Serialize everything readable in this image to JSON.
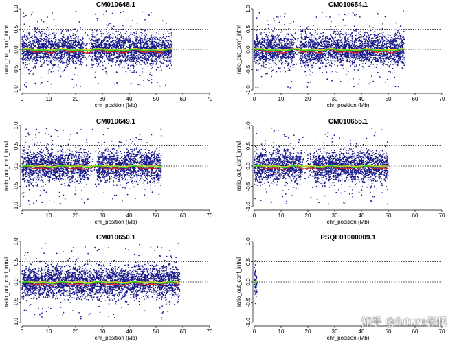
{
  "figure": {
    "watermark": "知乎 @future张帆",
    "colors": {
      "points": "#1a1a8a",
      "ref_line": "#000000",
      "smooth_green": "#22cc22",
      "smooth_yellow": "#dddd22",
      "smooth_red": "#dd2222"
    }
  },
  "chart_data": [
    {
      "type": "scatter",
      "title": "CM010648.1",
      "xlabel": "chr_position (Mb)",
      "ylabel": "ratio_out_conf_intrvl",
      "xlim": [
        0,
        70
      ],
      "ylim": [
        -1.0,
        1.0
      ],
      "xticks": [
        "0",
        "10",
        "20",
        "30",
        "40",
        "50",
        "60",
        "70"
      ],
      "yticks": [
        "-1.0",
        "-0.5",
        "0.0",
        "0.5",
        "1.0"
      ],
      "ref_lines_y": [
        0.5,
        0.0
      ],
      "data_extent_mb": [
        0,
        56
      ],
      "gaps_mb": [
        [
          23,
          26
        ]
      ]
    },
    {
      "type": "scatter",
      "title": "CM010654.1",
      "xlabel": "chr_position (Mb)",
      "ylabel": "ratio_out_conf_intrvl",
      "xlim": [
        0,
        70
      ],
      "ylim": [
        -1.0,
        1.0
      ],
      "xticks": [
        "0",
        "10",
        "20",
        "30",
        "40",
        "50",
        "60",
        "70"
      ],
      "yticks": [
        "-1.0",
        "-0.5",
        "0.0",
        "0.5",
        "1.0"
      ],
      "ref_lines_y": [
        0.5,
        0.0
      ],
      "data_extent_mb": [
        0,
        56
      ],
      "gaps_mb": [
        [
          15,
          17
        ]
      ]
    },
    {
      "type": "scatter",
      "title": "CM010649.1",
      "xlabel": "chr_position (Mb)",
      "ylabel": "ratio_out_conf_intrvl",
      "xlim": [
        0,
        70
      ],
      "ylim": [
        -1.0,
        1.0
      ],
      "xticks": [
        "0",
        "10",
        "20",
        "30",
        "40",
        "50",
        "60",
        "70"
      ],
      "yticks": [
        "-1.0",
        "-0.5",
        "0.0",
        "0.5",
        "1.0"
      ],
      "ref_lines_y": [
        0.5,
        0.0
      ],
      "data_extent_mb": [
        0,
        52
      ],
      "gaps_mb": [
        [
          25,
          28
        ]
      ]
    },
    {
      "type": "scatter",
      "title": "CM010655.1",
      "xlabel": "chr_position (Mb)",
      "ylabel": "ratio_out_conf_intrvl",
      "xlim": [
        0,
        70
      ],
      "ylim": [
        -1.0,
        1.0
      ],
      "xticks": [
        "0",
        "10",
        "20",
        "30",
        "40",
        "50",
        "60",
        "70"
      ],
      "yticks": [
        "-1.0",
        "-0.5",
        "0.0",
        "0.5",
        "1.0"
      ],
      "ref_lines_y": [
        0.5,
        0.0
      ],
      "data_extent_mb": [
        0,
        50
      ],
      "gaps_mb": [
        [
          18,
          22
        ]
      ]
    },
    {
      "type": "scatter",
      "title": "CM010650.1",
      "xlabel": "chr_position (Mb)",
      "ylabel": "ratio_out_conf_intrvl",
      "xlim": [
        0,
        70
      ],
      "ylim": [
        -1.0,
        1.0
      ],
      "xticks": [
        "0",
        "10",
        "20",
        "30",
        "40",
        "50",
        "60",
        "70"
      ],
      "yticks": [
        "-1.0",
        "-0.5",
        "0.0",
        "0.5",
        "1.0"
      ],
      "ref_lines_y": [
        0.5,
        0.0
      ],
      "data_extent_mb": [
        0,
        59
      ],
      "gaps_mb": []
    },
    {
      "type": "scatter",
      "title": "PSQE01000009.1",
      "xlabel": "chr_position (Mb)",
      "ylabel": "ratio_out_conf_intrvl",
      "xlim": [
        0,
        70
      ],
      "ylim": [
        -1.0,
        1.0
      ],
      "xticks": [
        "0",
        "10",
        "20",
        "30",
        "40",
        "50",
        "60",
        "70"
      ],
      "yticks": [
        "-1.0",
        "-0.5",
        "0.0",
        "0.5",
        "1.0"
      ],
      "ref_lines_y": [
        0.5,
        0.0
      ],
      "data_extent_mb": [
        0,
        1
      ],
      "gaps_mb": []
    }
  ]
}
